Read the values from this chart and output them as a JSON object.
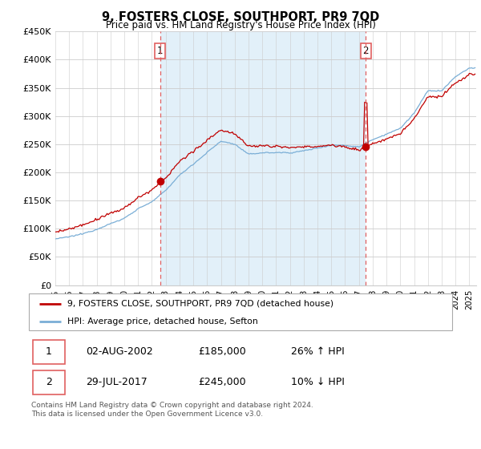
{
  "title": "9, FOSTERS CLOSE, SOUTHPORT, PR9 7QD",
  "subtitle": "Price paid vs. HM Land Registry's House Price Index (HPI)",
  "legend_line1": "9, FOSTERS CLOSE, SOUTHPORT, PR9 7QD (detached house)",
  "legend_line2": "HPI: Average price, detached house, Sefton",
  "table_row1": [
    "1",
    "02-AUG-2002",
    "£185,000",
    "26% ↑ HPI"
  ],
  "table_row2": [
    "2",
    "29-JUL-2017",
    "£245,000",
    "10% ↓ HPI"
  ],
  "footer": "Contains HM Land Registry data © Crown copyright and database right 2024.\nThis data is licensed under the Open Government Licence v3.0.",
  "hpi_color": "#7aaed6",
  "price_color": "#c00000",
  "vline_color": "#e06060",
  "shade_color": "#ddeeff",
  "ylim": [
    0,
    450000
  ],
  "yticks": [
    0,
    50000,
    100000,
    150000,
    200000,
    250000,
    300000,
    350000,
    400000,
    450000
  ],
  "ytick_labels": [
    "£0",
    "£50K",
    "£100K",
    "£150K",
    "£200K",
    "£250K",
    "£300K",
    "£350K",
    "£400K",
    "£450K"
  ],
  "sale1_date": 2002.583,
  "sale1_price": 185000,
  "sale2_date": 2017.5,
  "sale2_price": 245000,
  "xlim_left": 1995,
  "xlim_right": 2025.5
}
